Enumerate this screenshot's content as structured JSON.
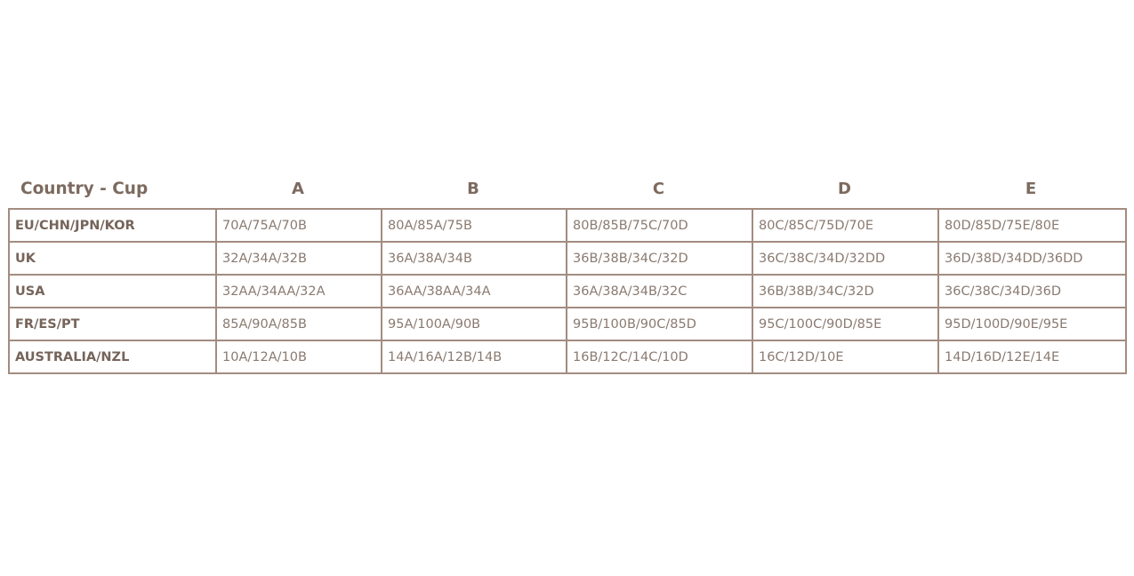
{
  "table": {
    "corner_label": "Country - Cup",
    "columns": [
      "A",
      "B",
      "C",
      "D",
      "E"
    ],
    "rows": [
      {
        "country": "EU/CHN/JPN/KOR",
        "cells": [
          "70A/75A/70B",
          "80A/85A/75B",
          "80B/85B/75C/70D",
          "80C/85C/75D/70E",
          "80D/85D/75E/80E"
        ]
      },
      {
        "country": "UK",
        "cells": [
          "32A/34A/32B",
          "36A/38A/34B",
          "36B/38B/34C/32D",
          "36C/38C/34D/32DD",
          "36D/38D/34DD/36DD"
        ]
      },
      {
        "country": "USA",
        "cells": [
          "32AA/34AA/32A",
          "36AA/38AA/34A",
          "36A/38A/34B/32C",
          "36B/38B/34C/32D",
          "36C/38C/34D/36D"
        ]
      },
      {
        "country": "FR/ES/PT",
        "cells": [
          "85A/90A/85B",
          "95A/100A/90B",
          "95B/100B/90C/85D",
          "95C/100C/90D/85E",
          "95D/100D/90E/95E"
        ]
      },
      {
        "country": "AUSTRALIA/NZL",
        "cells": [
          "10A/12A/10B",
          "14A/16A/12B/14B",
          "16B/12C/14C/10D",
          "16C/12D/10E",
          "14D/16D/12E/14E"
        ]
      }
    ]
  },
  "colors": {
    "border": "#a28c80",
    "text": "#8a7a70",
    "heading": "#7d6a5f"
  }
}
